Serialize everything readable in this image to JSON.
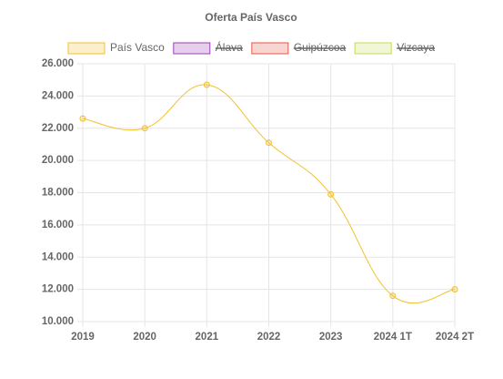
{
  "chart_data": {
    "type": "line",
    "title": "Oferta País Vasco",
    "categories": [
      "2019",
      "2020",
      "2021",
      "2022",
      "2023",
      "2024 1T",
      "2024 2T"
    ],
    "series": [
      {
        "name": "País Vasco",
        "color": "#f2c12e",
        "values": [
          22600,
          22000,
          24700,
          21100,
          17900,
          11600,
          12000
        ]
      },
      {
        "name": "Álava",
        "color": "#9b3fb5",
        "hidden": true
      },
      {
        "name": "Guipúzcoa",
        "color": "#e8564a",
        "hidden": true
      },
      {
        "name": "Vizcaya",
        "color": "#c2dc5a",
        "hidden": true
      }
    ],
    "ylim": [
      10000,
      26000
    ],
    "yticks": [
      {
        "value": 10000,
        "label": "10.000"
      },
      {
        "value": 12000,
        "label": "12.000"
      },
      {
        "value": 14000,
        "label": "14.000"
      },
      {
        "value": 16000,
        "label": "16.000"
      },
      {
        "value": 18000,
        "label": "18.000"
      },
      {
        "value": 20000,
        "label": "20.000"
      },
      {
        "value": 22000,
        "label": "22.000"
      },
      {
        "value": 24000,
        "label": "24.000"
      },
      {
        "value": 26000,
        "label": "26.000"
      }
    ],
    "grid": true,
    "legend": "top"
  }
}
